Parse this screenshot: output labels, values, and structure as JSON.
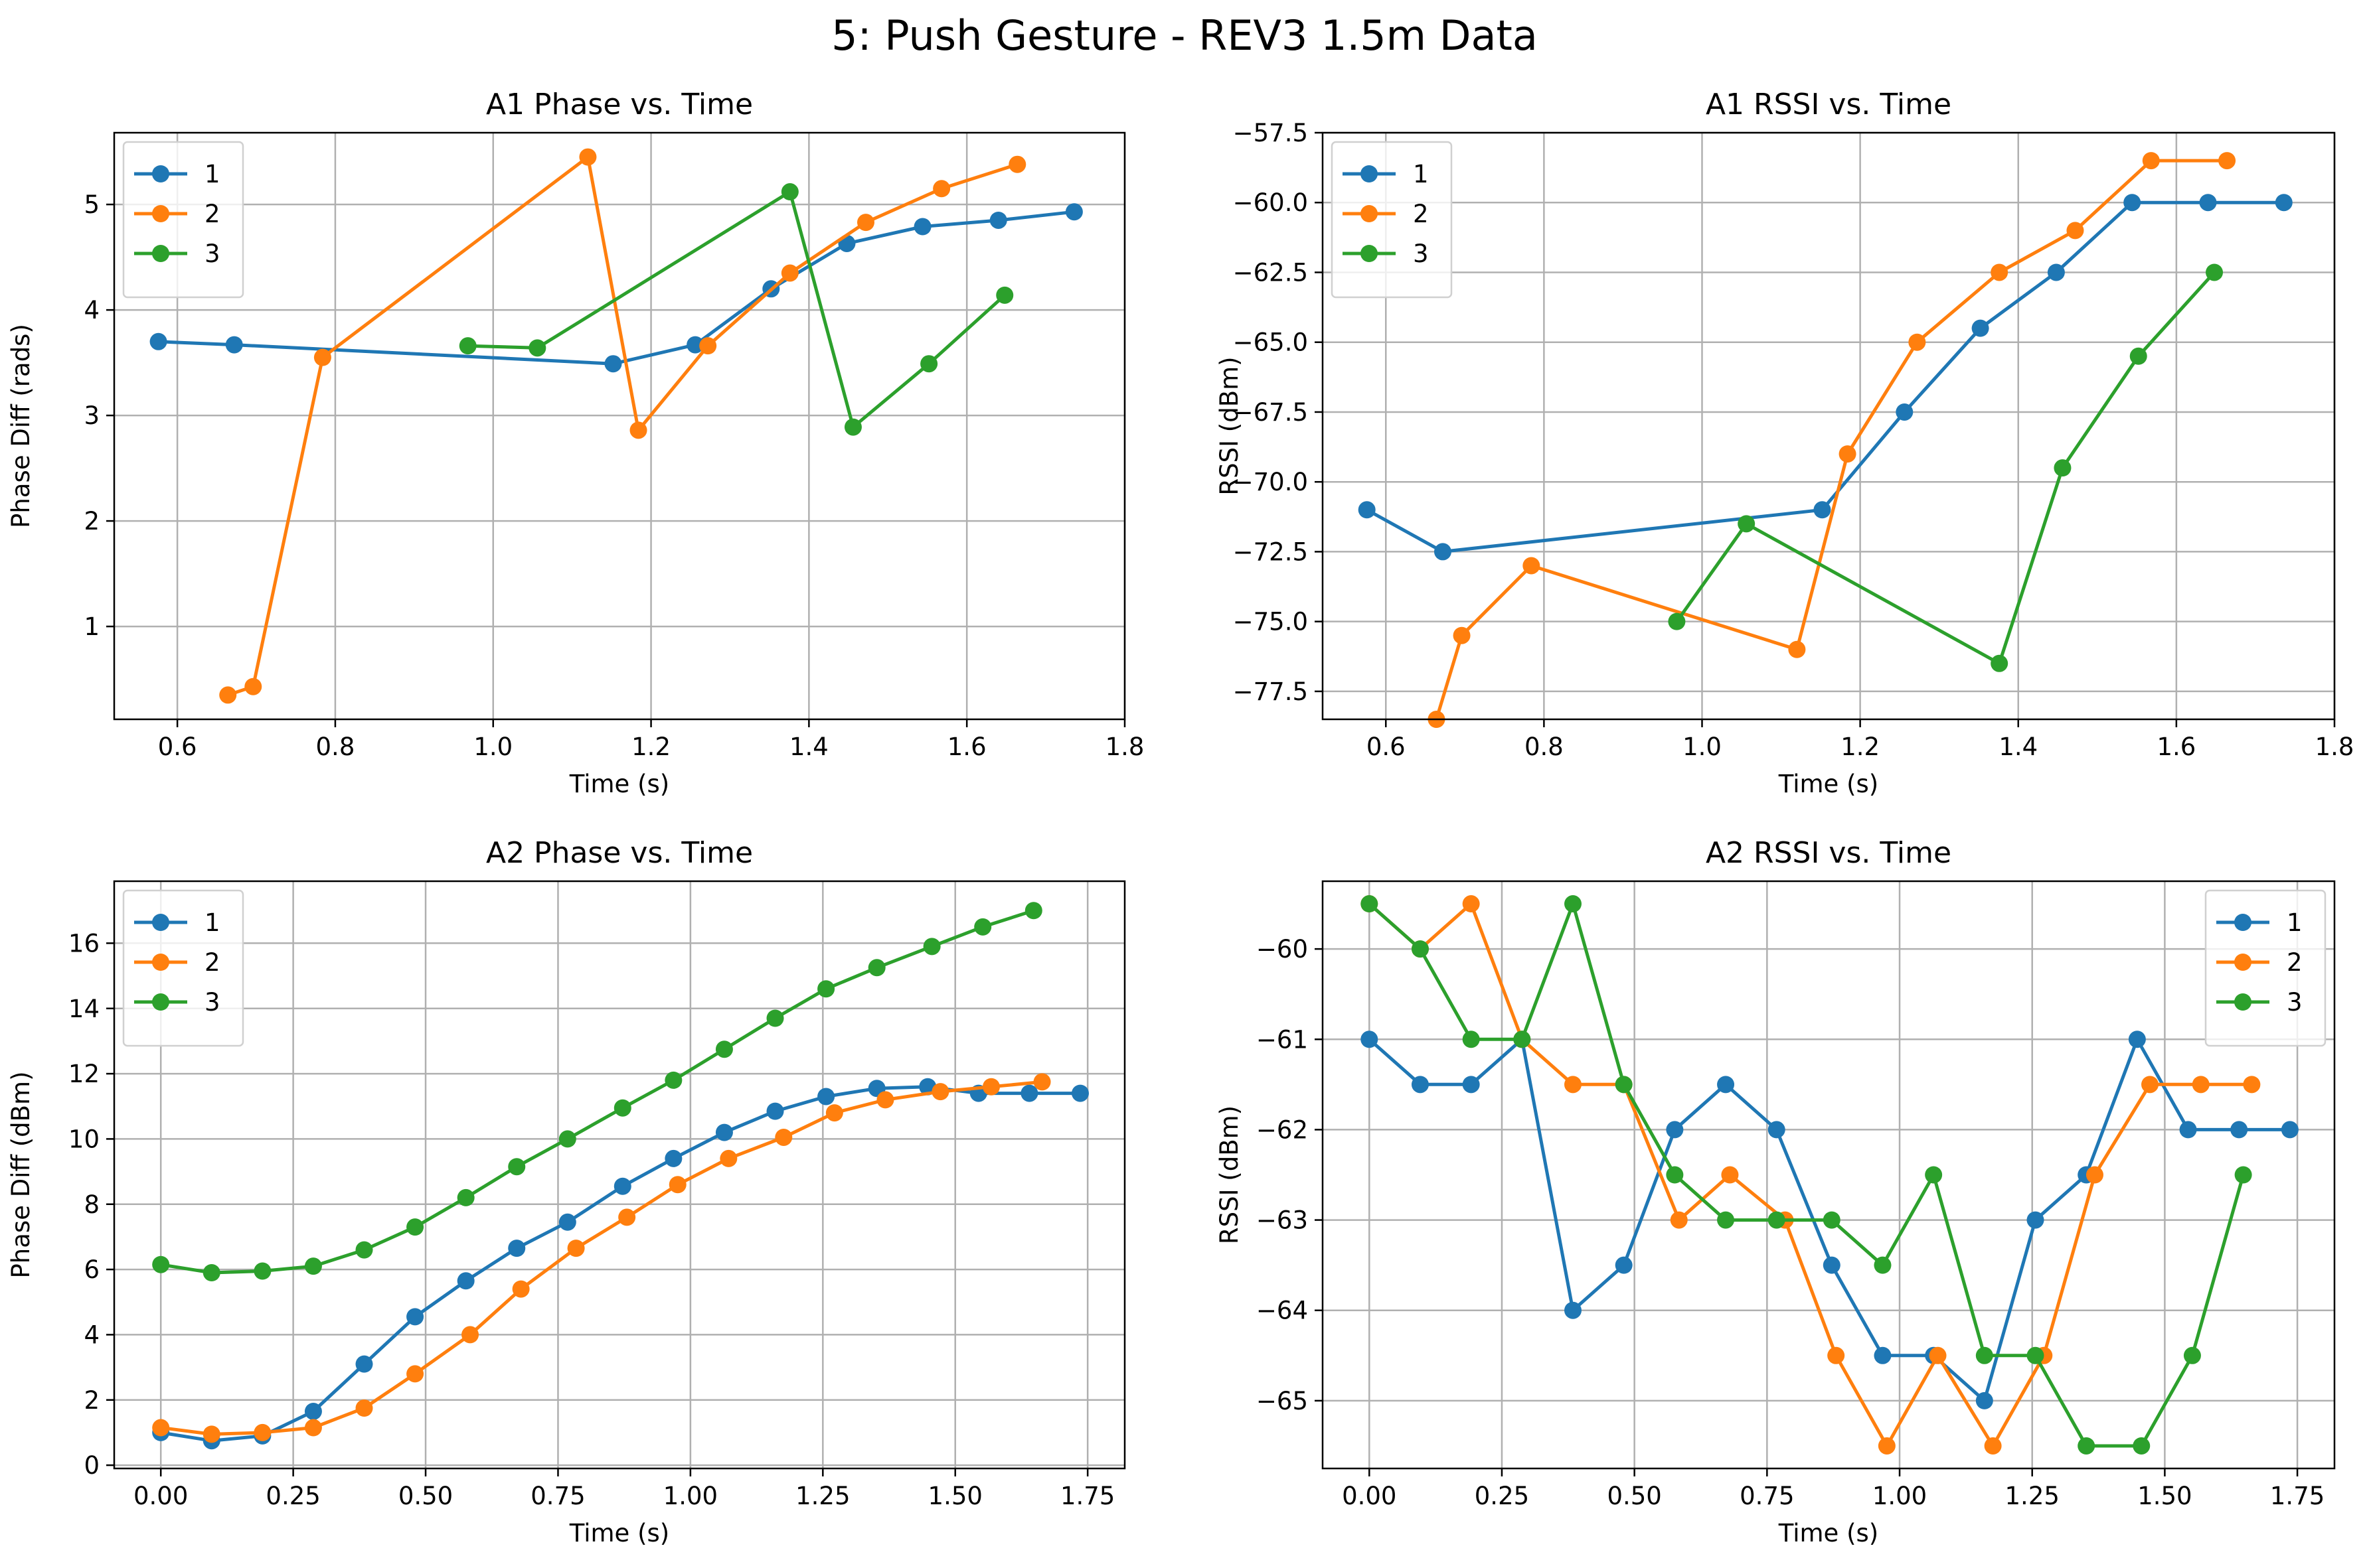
{
  "figure": {
    "suptitle": "5: Push Gesture - REV3 1.5m Data",
    "colors": {
      "series_1": "#1f77b4",
      "series_2": "#ff7f0e",
      "series_3": "#2ca02c",
      "grid": "#b0b0b0"
    }
  },
  "chart_data": [
    {
      "id": "a1-phase",
      "type": "line",
      "title": "A1 Phase vs. Time",
      "xlabel": "Time (s)",
      "ylabel": "Phase Diff (rads)",
      "xlim": [
        0.52,
        1.8
      ],
      "ylim": [
        0.12,
        5.68
      ],
      "xticks": [
        0.6,
        0.8,
        1.0,
        1.2,
        1.4,
        1.6,
        1.8
      ],
      "xtick_labels": [
        "0.6",
        "0.8",
        "1.0",
        "1.2",
        "1.4",
        "1.6",
        "1.8"
      ],
      "yticks": [
        1,
        2,
        3,
        4,
        5
      ],
      "ytick_labels": [
        "1",
        "2",
        "3",
        "4",
        "5"
      ],
      "grid": true,
      "legend_position": "upper-left",
      "series": [
        {
          "name": "1",
          "color": "#1f77b4",
          "x": [
            0.576,
            0.672,
            1.152,
            1.256,
            1.352,
            1.448,
            1.544,
            1.64,
            1.736
          ],
          "y": [
            3.7,
            3.67,
            3.49,
            3.67,
            4.2,
            4.63,
            4.79,
            4.85,
            4.93
          ]
        },
        {
          "name": "2",
          "color": "#ff7f0e",
          "x": [
            0.664,
            0.696,
            0.784,
            1.12,
            1.184,
            1.272,
            1.376,
            1.472,
            1.568,
            1.664
          ],
          "y": [
            0.35,
            0.43,
            3.55,
            5.45,
            2.86,
            3.66,
            4.35,
            4.83,
            5.15,
            5.38
          ]
        },
        {
          "name": "3",
          "color": "#2ca02c",
          "x": [
            0.968,
            1.056,
            1.376,
            1.456,
            1.552,
            1.648
          ],
          "y": [
            3.66,
            3.64,
            5.12,
            2.89,
            3.49,
            4.14
          ]
        }
      ]
    },
    {
      "id": "a1-rssi",
      "type": "line",
      "title": "A1 RSSI vs. Time",
      "xlabel": "Time (s)",
      "ylabel": "RSSI (dBm)",
      "xlim": [
        0.52,
        1.8
      ],
      "ylim": [
        -78.5,
        -57.5
      ],
      "xticks": [
        0.6,
        0.8,
        1.0,
        1.2,
        1.4,
        1.6,
        1.8
      ],
      "xtick_labels": [
        "0.6",
        "0.8",
        "1.0",
        "1.2",
        "1.4",
        "1.6",
        "1.8"
      ],
      "yticks": [
        -77.5,
        -75.0,
        -72.5,
        -70.0,
        -67.5,
        -65.0,
        -62.5,
        -60.0,
        -57.5
      ],
      "ytick_labels": [
        "−77.5",
        "−75.0",
        "−72.5",
        "−70.0",
        "−67.5",
        "−65.0",
        "−62.5",
        "−60.0",
        "−57.5"
      ],
      "grid": true,
      "legend_position": "upper-left",
      "series": [
        {
          "name": "1",
          "color": "#1f77b4",
          "x": [
            0.576,
            0.672,
            1.152,
            1.256,
            1.352,
            1.448,
            1.544,
            1.64,
            1.736
          ],
          "y": [
            -71.0,
            -72.5,
            -71.0,
            -67.5,
            -64.5,
            -62.5,
            -60.0,
            -60.0,
            -60.0
          ]
        },
        {
          "name": "2",
          "color": "#ff7f0e",
          "x": [
            0.664,
            0.696,
            0.784,
            1.12,
            1.184,
            1.272,
            1.376,
            1.472,
            1.568,
            1.664
          ],
          "y": [
            -78.5,
            -75.5,
            -73.0,
            -76.0,
            -69.0,
            -65.0,
            -62.5,
            -61.0,
            -58.5,
            -58.5
          ]
        },
        {
          "name": "3",
          "color": "#2ca02c",
          "x": [
            0.968,
            1.056,
            1.376,
            1.456,
            1.552,
            1.648
          ],
          "y": [
            -75.0,
            -71.5,
            -76.5,
            -69.5,
            -65.5,
            -62.5
          ]
        }
      ]
    },
    {
      "id": "a2-phase",
      "type": "line",
      "title": "A2 Phase vs. Time",
      "xlabel": "Time (s)",
      "ylabel": "Phase Diff (dBm)",
      "xlim": [
        -0.088,
        1.82
      ],
      "ylim": [
        -0.1,
        17.9
      ],
      "xticks": [
        0.0,
        0.25,
        0.5,
        0.75,
        1.0,
        1.25,
        1.5,
        1.75
      ],
      "xtick_labels": [
        "0.00",
        "0.25",
        "0.50",
        "0.75",
        "1.00",
        "1.25",
        "1.50",
        "1.75"
      ],
      "yticks": [
        0,
        2,
        4,
        6,
        8,
        10,
        12,
        14,
        16
      ],
      "ytick_labels": [
        "0",
        "2",
        "4",
        "6",
        "8",
        "10",
        "12",
        "14",
        "16"
      ],
      "grid": true,
      "legend_position": "upper-left",
      "series": [
        {
          "name": "1",
          "color": "#1f77b4",
          "x": [
            0.0,
            0.096,
            0.192,
            0.288,
            0.384,
            0.48,
            0.576,
            0.672,
            0.768,
            0.872,
            0.968,
            1.064,
            1.16,
            1.256,
            1.352,
            1.448,
            1.544,
            1.64,
            1.736
          ],
          "y": [
            1.0,
            0.75,
            0.9,
            1.65,
            3.1,
            4.55,
            5.65,
            6.65,
            7.45,
            8.55,
            9.4,
            10.2,
            10.85,
            11.3,
            11.55,
            11.6,
            11.4,
            11.4,
            11.4
          ]
        },
        {
          "name": "2",
          "color": "#ff7f0e",
          "x": [
            0.0,
            0.096,
            0.192,
            0.288,
            0.384,
            0.48,
            0.584,
            0.68,
            0.784,
            0.88,
            0.976,
            1.072,
            1.176,
            1.272,
            1.368,
            1.472,
            1.568,
            1.664
          ],
          "y": [
            1.15,
            0.95,
            1.0,
            1.15,
            1.75,
            2.8,
            4.0,
            5.4,
            6.65,
            7.6,
            8.6,
            9.4,
            10.05,
            10.8,
            11.2,
            11.45,
            11.6,
            11.75
          ]
        },
        {
          "name": "3",
          "color": "#2ca02c",
          "x": [
            0.0,
            0.096,
            0.192,
            0.288,
            0.384,
            0.48,
            0.576,
            0.672,
            0.768,
            0.872,
            0.968,
            1.064,
            1.16,
            1.256,
            1.352,
            1.456,
            1.552,
            1.648
          ],
          "y": [
            6.15,
            5.9,
            5.95,
            6.1,
            6.6,
            7.3,
            8.2,
            9.15,
            10.0,
            10.95,
            11.8,
            12.75,
            13.7,
            14.6,
            15.25,
            15.9,
            16.5,
            17.0
          ]
        }
      ]
    },
    {
      "id": "a2-rssi",
      "type": "line",
      "title": "A2 RSSI vs. Time",
      "xlabel": "Time (s)",
      "ylabel": "RSSI (dBm)",
      "xlim": [
        -0.088,
        1.82
      ],
      "ylim": [
        -65.75,
        -59.25
      ],
      "xticks": [
        0.0,
        0.25,
        0.5,
        0.75,
        1.0,
        1.25,
        1.5,
        1.75
      ],
      "xtick_labels": [
        "0.00",
        "0.25",
        "0.50",
        "0.75",
        "1.00",
        "1.25",
        "1.50",
        "1.75"
      ],
      "yticks": [
        -65,
        -64,
        -63,
        -62,
        -61,
        -60
      ],
      "ytick_labels": [
        "−65",
        "−64",
        "−63",
        "−62",
        "−61",
        "−60"
      ],
      "grid": true,
      "legend_position": "upper-right",
      "series": [
        {
          "name": "1",
          "color": "#1f77b4",
          "x": [
            0.0,
            0.096,
            0.192,
            0.288,
            0.384,
            0.48,
            0.576,
            0.672,
            0.768,
            0.872,
            0.968,
            1.064,
            1.16,
            1.256,
            1.352,
            1.448,
            1.544,
            1.64,
            1.736
          ],
          "y": [
            -61.0,
            -61.5,
            -61.5,
            -61.0,
            -64.0,
            -63.5,
            -62.0,
            -61.5,
            -62.0,
            -63.5,
            -64.5,
            -64.5,
            -65.0,
            -63.0,
            -62.5,
            -61.0,
            -62.0,
            -62.0,
            -62.0
          ]
        },
        {
          "name": "2",
          "color": "#ff7f0e",
          "x": [
            0.0,
            0.096,
            0.192,
            0.288,
            0.384,
            0.48,
            0.584,
            0.68,
            0.784,
            0.88,
            0.976,
            1.072,
            1.176,
            1.272,
            1.368,
            1.472,
            1.568,
            1.664
          ],
          "y": [
            -59.5,
            -60.0,
            -59.5,
            -61.0,
            -61.5,
            -61.5,
            -63.0,
            -62.5,
            -63.0,
            -64.5,
            -65.5,
            -64.5,
            -65.5,
            -64.5,
            -62.5,
            -61.5,
            -61.5,
            -61.5
          ]
        },
        {
          "name": "3",
          "color": "#2ca02c",
          "x": [
            0.0,
            0.096,
            0.192,
            0.288,
            0.384,
            0.48,
            0.576,
            0.672,
            0.768,
            0.872,
            0.968,
            1.064,
            1.16,
            1.256,
            1.352,
            1.456,
            1.552,
            1.648
          ],
          "y": [
            -59.5,
            -60.0,
            -61.0,
            -61.0,
            -59.5,
            -61.5,
            -62.5,
            -63.0,
            -63.0,
            -63.0,
            -63.5,
            -62.5,
            -64.5,
            -64.5,
            -65.5,
            -65.5,
            -64.5,
            -62.5
          ]
        }
      ]
    }
  ]
}
